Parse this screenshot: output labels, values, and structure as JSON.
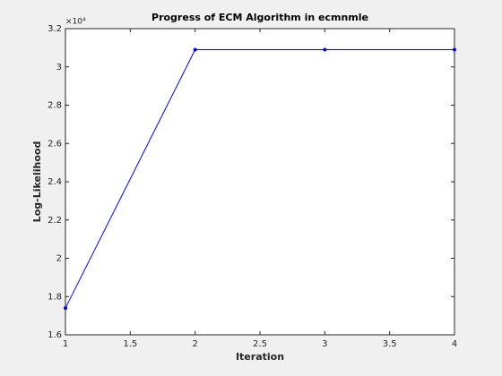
{
  "chart_data": {
    "type": "line",
    "title": "Progress of ECM Algorithm in ecmnmle",
    "x_label": "Iteration",
    "y_label": "Log-Likelihood",
    "y_multiplier": "×10⁴",
    "x": [
      1,
      2,
      3,
      4
    ],
    "series": [
      {
        "name": "Log-Likelihood",
        "color": "#0000ff",
        "values": [
          1.74,
          3.09,
          3.09,
          3.09
        ]
      }
    ],
    "xlim": [
      1,
      4
    ],
    "xticks": [
      1,
      1.5,
      2,
      2.5,
      3,
      3.5,
      4
    ],
    "ylim": [
      1.6,
      3.2
    ],
    "yticks": [
      1.6,
      1.8,
      2,
      2.2,
      2.4,
      2.6,
      2.8,
      3,
      3.2
    ],
    "grid": false
  }
}
